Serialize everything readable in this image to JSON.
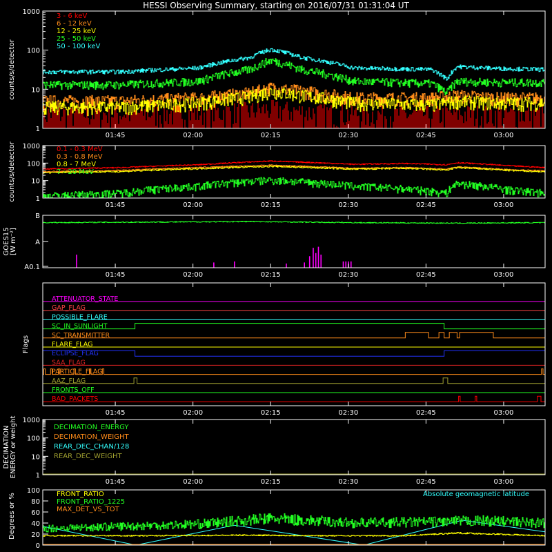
{
  "title": "HESSI Observing Summary, starting on 2016/07/31 01:31:04 UT",
  "colors": {
    "background": "#000000",
    "axes": "#ffffff",
    "red": "#ff0000",
    "orange": "#ff8c1a",
    "yellow": "#ffff00",
    "green": "#22ff22",
    "cyan": "#33ffff",
    "magenta": "#ff00ff",
    "blue": "#2233ff",
    "olive": "#a0a030",
    "darkred": "#dd2222"
  },
  "time_ticks": [
    "01:45",
    "02:00",
    "02:15",
    "02:30",
    "02:45",
    "03:00"
  ],
  "chart_data": [
    {
      "id": "hxr",
      "type": "line",
      "ylabel": "counts/s/detector",
      "log_scale": true,
      "ylim": [
        1,
        1000
      ],
      "y_ticks": [
        "1",
        "10",
        "100",
        "1000"
      ],
      "x_range_minutes_after_01:31:04": [
        0,
        97
      ],
      "legend_position": "top-left",
      "series": [
        {
          "name": "3 - 6 keV",
          "color": "#ff0000",
          "x": [
            0,
            15,
            30,
            40,
            44,
            50,
            60,
            75,
            80,
            88,
            97
          ],
          "values": [
            1.5,
            1.5,
            1.6,
            1.8,
            2,
            1.7,
            1.5,
            1.4,
            1.5,
            1.5,
            1.5
          ]
        },
        {
          "name": "6 - 12 keV",
          "color": "#ff8c1a",
          "x": [
            0,
            15,
            30,
            40,
            44,
            50,
            60,
            75,
            80,
            88,
            97
          ],
          "values": [
            5,
            5,
            6,
            8,
            11,
            9,
            6,
            6,
            7,
            6,
            6
          ]
        },
        {
          "name": "12 - 25 keV",
          "color": "#ffff00",
          "x": [
            0,
            15,
            30,
            40,
            44,
            50,
            60,
            75,
            80,
            88,
            97
          ],
          "values": [
            3.5,
            3.5,
            4.5,
            6.5,
            9,
            7,
            4.5,
            4,
            5,
            4.5,
            4.5
          ]
        },
        {
          "name": "25 - 50 keV",
          "color": "#22ff22",
          "x": [
            0,
            15,
            30,
            40,
            44,
            50,
            60,
            75,
            78,
            80,
            88,
            97
          ],
          "values": [
            13,
            13,
            16,
            32,
            55,
            32,
            16,
            14,
            8,
            16,
            15,
            15
          ]
        },
        {
          "name": "50 - 100 keV",
          "color": "#33ffff",
          "x": [
            0,
            15,
            30,
            40,
            44,
            50,
            60,
            75,
            78,
            80,
            88,
            97
          ],
          "values": [
            28,
            28,
            35,
            65,
            105,
            65,
            35,
            32,
            18,
            38,
            34,
            32
          ]
        }
      ]
    },
    {
      "id": "gamma",
      "type": "line",
      "ylabel": "counts/s/detector",
      "log_scale": true,
      "ylim": [
        1,
        1000
      ],
      "y_ticks": [
        "1",
        "10",
        "100",
        "1000"
      ],
      "legend_position": "top-left",
      "series": [
        {
          "name": "0.1 - 0.3 MeV",
          "color": "#ff0000",
          "x": [
            0,
            15,
            30,
            44,
            60,
            70,
            78,
            80,
            90,
            97
          ],
          "values": [
            45,
            55,
            80,
            130,
            85,
            95,
            80,
            105,
            70,
            55
          ]
        },
        {
          "name": "0.3 - 0.8 MeV",
          "color": "#ff8c1a",
          "x": [
            0,
            15,
            30,
            44,
            60,
            70,
            78,
            80,
            90,
            97
          ],
          "values": [
            32,
            38,
            55,
            75,
            50,
            55,
            45,
            60,
            42,
            36
          ]
        },
        {
          "name": "0.8 - 7 MeV",
          "color": "#ffff00",
          "x": [
            0,
            15,
            30,
            44,
            60,
            70,
            78,
            80,
            90,
            97
          ],
          "values": [
            28,
            33,
            48,
            65,
            45,
            50,
            40,
            55,
            38,
            32
          ]
        },
        {
          "name": "7 - 20 MeV",
          "color": "#22ff22",
          "x": [
            0,
            15,
            30,
            44,
            60,
            70,
            78,
            80,
            90,
            97
          ],
          "values": [
            1.3,
            2,
            5,
            11,
            5,
            3.5,
            2,
            7,
            3,
            2
          ]
        }
      ]
    },
    {
      "id": "goes",
      "type": "line",
      "ylabel": "GOES15",
      "ylabel_units": "[W m⁻²]",
      "y_ticks": [
        "A0.1",
        "A",
        "B"
      ],
      "series": [
        {
          "name": "GOES",
          "color": "#22ff22",
          "x": [
            0,
            20,
            40,
            60,
            80,
            97
          ],
          "values": [
            0.86,
            0.87,
            0.88,
            0.86,
            0.85,
            0.86
          ]
        }
      ],
      "magenta_spikes": [
        {
          "x": 6.5,
          "h": 0.25
        },
        {
          "x": 33,
          "h": 0.1
        },
        {
          "x": 37,
          "h": 0.12
        },
        {
          "x": 47,
          "h": 0.08
        },
        {
          "x": 50.5,
          "h": 0.1
        },
        {
          "x": 51.5,
          "h": 0.22
        },
        {
          "x": 52.2,
          "h": 0.38
        },
        {
          "x": 52.7,
          "h": 0.28
        },
        {
          "x": 53.2,
          "h": 0.4
        },
        {
          "x": 53.7,
          "h": 0.25
        },
        {
          "x": 58,
          "h": 0.12
        },
        {
          "x": 58.5,
          "h": 0.12
        },
        {
          "x": 59,
          "h": 0.12
        },
        {
          "x": 59.5,
          "h": 0.12
        }
      ]
    },
    {
      "id": "flags",
      "type": "line",
      "ylabel": "Flags",
      "flags": [
        {
          "name": "ATTENUATOR_STATE",
          "color": "#ff00ff",
          "intervals": []
        },
        {
          "name": "GAP_FLAG",
          "color": "#ff4444",
          "intervals": []
        },
        {
          "name": "POSSIBLE_FLARE",
          "color": "#33ffff",
          "intervals": []
        },
        {
          "name": "SC_IN_SUNLIGHT",
          "color": "#22ff22",
          "intervals": [
            [
              17.8,
              77.5
            ]
          ]
        },
        {
          "name": "SC_TRANSMITTER",
          "color": "#ff8c1a",
          "intervals": [
            [
              70,
              74.5
            ],
            [
              76.5,
              77.5
            ],
            [
              78.5,
              80
            ],
            [
              80.5,
              87
            ]
          ]
        },
        {
          "name": "FLARE_FLAG",
          "color": "#ffff00",
          "intervals": []
        },
        {
          "name": "ECLIPSE_FLAG",
          "color": "#2233ff",
          "intervals": [
            [
              0,
              17.8
            ],
            [
              77.5,
              97
            ]
          ]
        },
        {
          "name": "SAA_FLAG",
          "color": "#dd2222",
          "intervals": []
        },
        {
          "name": "PARTICLE_FLAG",
          "color": "#ff8c1a",
          "intervals": [
            [
              0.2,
              0.5
            ],
            [
              1.5,
              1.8
            ],
            [
              3,
              3.3
            ],
            [
              6,
              6.3
            ],
            [
              9,
              9.3
            ],
            [
              11.5,
              11.8
            ],
            [
              96.3,
              96.6
            ]
          ]
        },
        {
          "name": "AAZ_FLAG",
          "color": "#a0a030",
          "intervals": [
            [
              17.6,
              18.2
            ],
            [
              77.3,
              78.2
            ]
          ]
        },
        {
          "name": "FRONTS_OFF",
          "color": "#22ff22",
          "intervals": []
        },
        {
          "name": "BAD_PACKETS",
          "color": "#ff0000",
          "intervals": [
            [
              80.3,
              80.6
            ],
            [
              83.5,
              83.8
            ],
            [
              95.5,
              96.2
            ]
          ]
        }
      ]
    },
    {
      "id": "decimation",
      "type": "line",
      "ylabel": "DECIMATION ENERGY or weight",
      "log_scale": true,
      "ylim": [
        1,
        1000
      ],
      "y_ticks": [
        "1",
        "10",
        "100",
        "1000"
      ],
      "legend_position": "top-left",
      "series": [
        {
          "name": "DECIMATION_ENERGY",
          "color": "#22ff22",
          "x": [
            0,
            97
          ],
          "values": [
            1,
            1
          ]
        },
        {
          "name": "DECIMATION_WEIGHT",
          "color": "#ff8c1a",
          "x": [
            0,
            97
          ],
          "values": [
            1,
            1
          ]
        },
        {
          "name": "REAR_DEC_CHAN/128",
          "color": "#33ffff",
          "x": [
            0,
            97
          ],
          "values": [
            1,
            1
          ]
        },
        {
          "name": "REAR_DEC_WEIGHT",
          "color": "#a0a030",
          "x": [
            0,
            97
          ],
          "values": [
            1,
            1
          ]
        }
      ]
    },
    {
      "id": "ratios",
      "type": "line",
      "ylabel": "Degrees or %",
      "ylim": [
        0,
        100
      ],
      "y_ticks": [
        "0",
        "20",
        "40",
        "60",
        "80",
        "100"
      ],
      "legend_position": "top-left",
      "right_label": "Absolute geomagnetic latitude",
      "series": [
        {
          "name": "FRONT_RATIO",
          "color": "#ffff00",
          "x": [
            0,
            20,
            40,
            55,
            70,
            80,
            97
          ],
          "values": [
            17,
            17,
            18,
            17,
            17,
            22,
            17
          ]
        },
        {
          "name": "FRONT_RATIO_1225",
          "color": "#22ff22",
          "x": [
            0,
            15,
            30,
            44,
            60,
            75,
            85,
            97
          ],
          "values": [
            30,
            34,
            38,
            48,
            40,
            42,
            44,
            40
          ]
        },
        {
          "name": "MAX_DET_VS_TOT",
          "color": "#ff8c1a",
          "x": [
            0,
            97
          ],
          "values": [
            0,
            0
          ]
        },
        {
          "name": "Absolute geomagnetic latitude",
          "color": "#33ffff",
          "x": [
            0,
            18,
            37,
            62,
            81,
            97
          ],
          "values": [
            34,
            0,
            36,
            0,
            45,
            24
          ]
        }
      ]
    }
  ]
}
